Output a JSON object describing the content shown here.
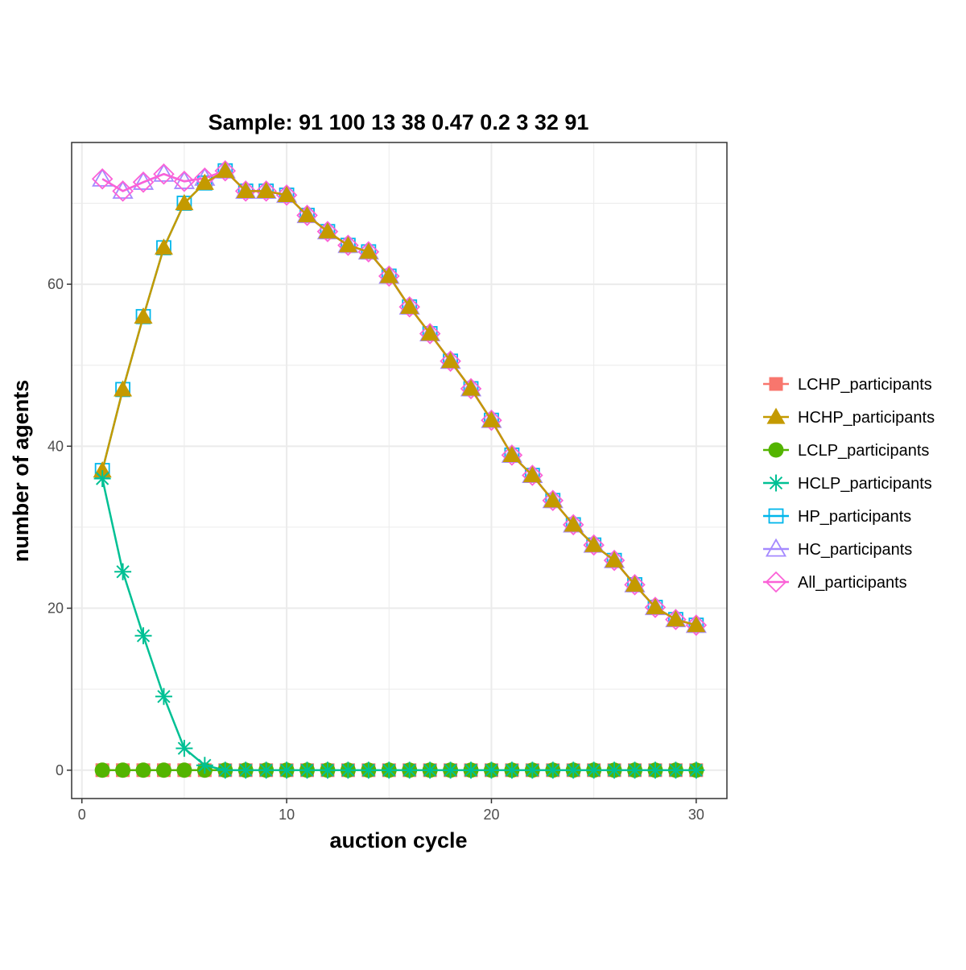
{
  "chart_data": {
    "type": "line",
    "title": "Sample: 91 100 13 38 0.47 0.2 3 32 91",
    "xlabel": "auction cycle",
    "ylabel": "number of agents",
    "xlim": [
      -0.5,
      31.5
    ],
    "ylim": [
      -3.5,
      77.5
    ],
    "xticks": [
      0,
      10,
      20,
      30
    ],
    "yticks": [
      0,
      20,
      40,
      60
    ],
    "grid": true,
    "legend_position": "right",
    "x": [
      1,
      2,
      3,
      4,
      5,
      6,
      7,
      8,
      9,
      10,
      11,
      12,
      13,
      14,
      15,
      16,
      17,
      18,
      19,
      20,
      21,
      22,
      23,
      24,
      25,
      26,
      27,
      28,
      29,
      30
    ],
    "series": [
      {
        "name": "LCHP_participants",
        "color": "#F8766D",
        "marker": "filled-square",
        "values": [
          0,
          0,
          0,
          0,
          0,
          0,
          0,
          0,
          0,
          0,
          0,
          0,
          0,
          0,
          0,
          0,
          0,
          0,
          0,
          0,
          0,
          0,
          0,
          0,
          0,
          0,
          0,
          0,
          0,
          0
        ]
      },
      {
        "name": "HCHP_participants",
        "color": "#C49A00",
        "marker": "filled-triangle",
        "values": [
          37,
          47,
          56,
          64.5,
          70,
          72.5,
          74,
          71.5,
          71.5,
          71,
          68.5,
          66.5,
          64.8,
          64,
          61,
          57.2,
          53.9,
          50.5,
          47.1,
          43.2,
          38.9,
          36.4,
          33.3,
          30.3,
          27.8,
          25.9,
          22.9,
          20.1,
          18.6,
          17.9
        ]
      },
      {
        "name": "LCLP_participants",
        "color": "#53B400",
        "marker": "filled-circle",
        "values": [
          0,
          0,
          0,
          0,
          0,
          0,
          0,
          0,
          0,
          0,
          0,
          0,
          0,
          0,
          0,
          0,
          0,
          0,
          0,
          0,
          0,
          0,
          0,
          0,
          0,
          0,
          0,
          0,
          0,
          0
        ]
      },
      {
        "name": "HCLP_participants",
        "color": "#00C094",
        "marker": "asterisk",
        "values": [
          36,
          24.5,
          16.6,
          9.1,
          2.7,
          0.6,
          0,
          0,
          0,
          0,
          0,
          0,
          0,
          0,
          0,
          0,
          0,
          0,
          0,
          0,
          0,
          0,
          0,
          0,
          0,
          0,
          0,
          0,
          0,
          0
        ]
      },
      {
        "name": "HP_participants",
        "color": "#00B6EB",
        "marker": "open-square",
        "values": [
          37,
          47,
          56,
          64.5,
          70,
          72.5,
          74,
          71.5,
          71.5,
          71,
          68.5,
          66.5,
          64.8,
          64,
          61,
          57.2,
          53.9,
          50.5,
          47.1,
          43.2,
          38.9,
          36.4,
          33.3,
          30.3,
          27.8,
          25.9,
          22.9,
          20.1,
          18.6,
          17.9
        ]
      },
      {
        "name": "HC_participants",
        "color": "#A58AFF",
        "marker": "open-triangle",
        "values": [
          73,
          71.5,
          72.6,
          73.6,
          72.7,
          73.1,
          74,
          71.5,
          71.5,
          71,
          68.5,
          66.5,
          64.8,
          64,
          61,
          57.2,
          53.9,
          50.5,
          47.1,
          43.2,
          38.9,
          36.4,
          33.3,
          30.3,
          27.8,
          25.9,
          22.9,
          20.1,
          18.6,
          17.9
        ]
      },
      {
        "name": "All_participants",
        "color": "#FB61D7",
        "marker": "open-diamond",
        "values": [
          73,
          71.5,
          72.6,
          73.6,
          72.7,
          73.1,
          74,
          71.5,
          71.5,
          71,
          68.5,
          66.5,
          64.8,
          64,
          61,
          57.2,
          53.9,
          50.5,
          47.1,
          43.2,
          38.9,
          36.4,
          33.3,
          30.3,
          27.8,
          25.9,
          22.9,
          20.1,
          18.6,
          17.9
        ]
      }
    ],
    "draw_order": [
      4,
      5,
      6,
      0,
      1,
      2,
      3
    ],
    "colors": {
      "grid": "#EBEBEB",
      "panel_border": "#333333",
      "tick_label": "#4D4D4D"
    }
  }
}
